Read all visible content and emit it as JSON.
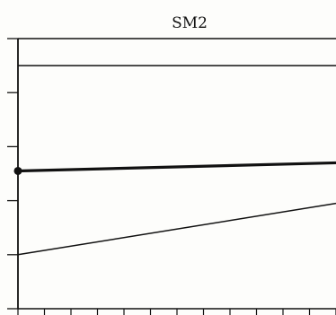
{
  "chart_data": {
    "type": "line",
    "title": "SM2",
    "xlabel": "",
    "ylabel": "",
    "xlim": [
      0,
      12
    ],
    "ylim": [
      0,
      5
    ],
    "grid": false,
    "x_ticks_count": 12,
    "y_ticks_count": 5,
    "series": [
      {
        "style": "thin",
        "x": [
          0,
          12
        ],
        "y": [
          4.5,
          4.5
        ]
      },
      {
        "style": "bold",
        "marker_at_start": true,
        "x": [
          0,
          12
        ],
        "y": [
          2.55,
          2.7
        ]
      },
      {
        "style": "thin",
        "x": [
          0,
          12
        ],
        "y": [
          1.0,
          1.95
        ]
      }
    ]
  },
  "colors": {
    "ink": "#111111",
    "paper": "#fdfdfb"
  }
}
